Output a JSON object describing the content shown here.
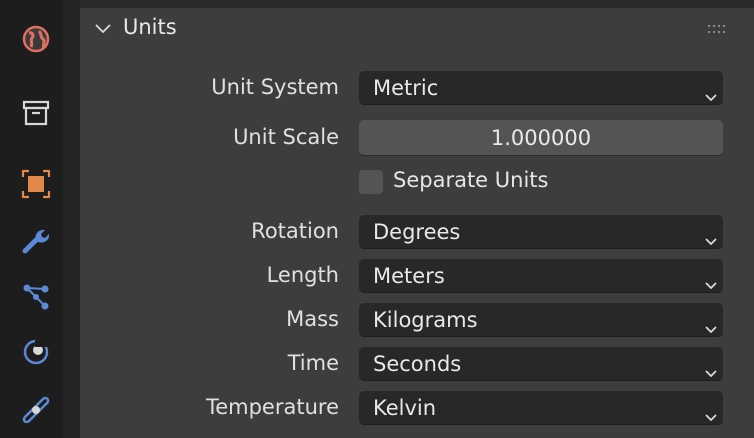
{
  "colors": {
    "panel_bg": "#3d3d3d",
    "sidebar_bg": "#1d1d1d",
    "dropdown_bg": "#282828",
    "numfield_bg": "#545454",
    "accent_scene": "#e07060",
    "accent_orange": "#e0894a",
    "accent_blue": "#5b8ad6"
  },
  "sidebar": {
    "tabs": [
      {
        "name": "world-icon"
      },
      {
        "name": "collection-icon"
      },
      {
        "name": "object-icon"
      },
      {
        "name": "modifier-wrench-icon"
      },
      {
        "name": "particles-icon"
      },
      {
        "name": "physics-icon"
      },
      {
        "name": "constraints-icon"
      }
    ]
  },
  "panel": {
    "title": "Units",
    "unit_system": {
      "label": "Unit System",
      "value": "Metric"
    },
    "unit_scale": {
      "label": "Unit Scale",
      "value": "1.000000"
    },
    "separate_units": {
      "label": "Separate Units",
      "checked": false
    },
    "rotation": {
      "label": "Rotation",
      "value": "Degrees"
    },
    "length": {
      "label": "Length",
      "value": "Meters"
    },
    "mass": {
      "label": "Mass",
      "value": "Kilograms"
    },
    "time": {
      "label": "Time",
      "value": "Seconds"
    },
    "temperature": {
      "label": "Temperature",
      "value": "Kelvin"
    }
  }
}
